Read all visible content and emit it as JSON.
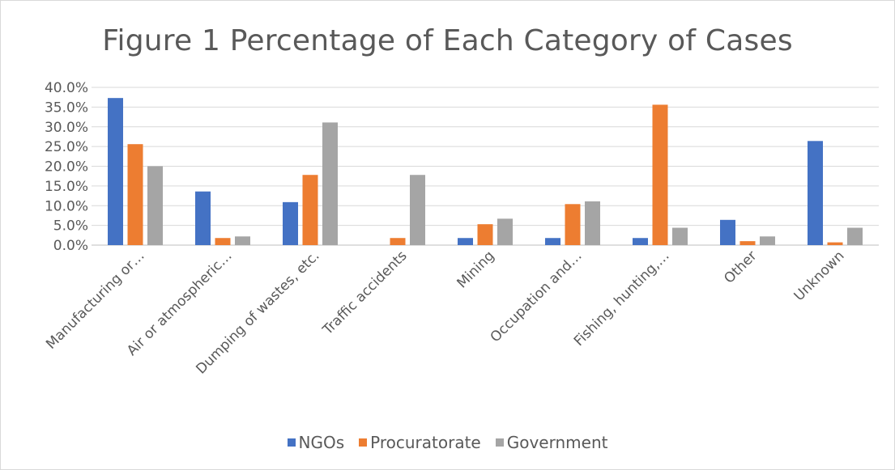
{
  "chart_data": {
    "type": "bar",
    "title": "Figure 1 Percentage of Each Category of Cases",
    "categories": [
      "Manufacturing or…",
      "Air or atmospheric…",
      "Dumping of wastes, etc.",
      "Traffic accidents",
      "Mining",
      "Occupation and…",
      "Fishing, hunting,…",
      "Other",
      "Unknown"
    ],
    "series": [
      {
        "name": "NGOs",
        "color": "#4472c4",
        "values": [
          37.3,
          13.6,
          10.9,
          0.0,
          1.8,
          1.8,
          1.8,
          6.4,
          26.4
        ]
      },
      {
        "name": "Procuratorate",
        "color": "#ed7d31",
        "values": [
          25.6,
          1.8,
          17.8,
          1.8,
          5.3,
          10.4,
          35.6,
          1.0,
          0.7
        ]
      },
      {
        "name": "Government",
        "color": "#a5a5a5",
        "values": [
          20.0,
          2.2,
          31.1,
          17.8,
          6.7,
          11.1,
          4.4,
          2.2,
          4.4
        ]
      }
    ],
    "yticks": [
      "0.0%",
      "5.0%",
      "10.0%",
      "15.0%",
      "20.0%",
      "25.0%",
      "30.0%",
      "35.0%",
      "40.0%"
    ],
    "ylim": [
      0,
      40
    ],
    "grid": true,
    "legend_position": "bottom"
  }
}
